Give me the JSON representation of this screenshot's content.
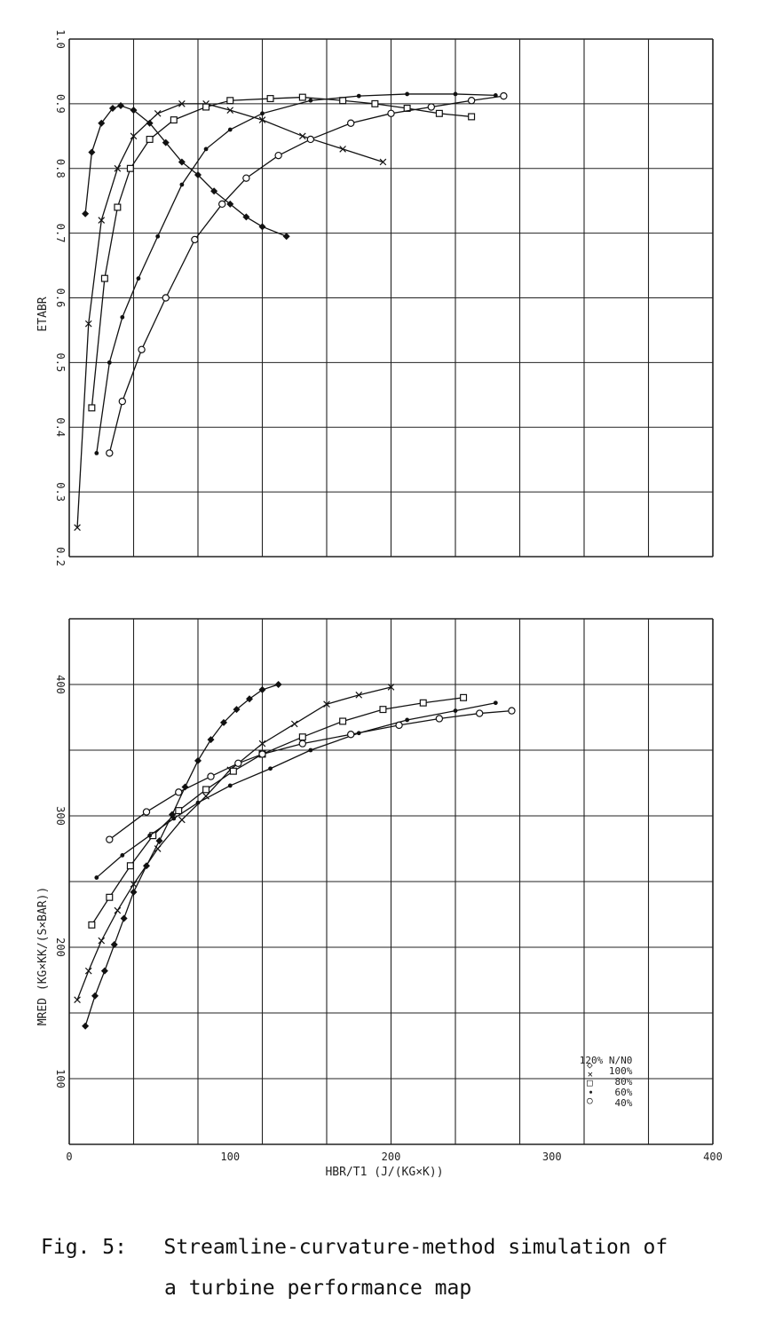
{
  "caption": {
    "line1_prefix": "Fig. 5:",
    "line1_text": "Streamline-curvature-method simulation of",
    "line2": "a turbine performance map"
  },
  "chart_data": [
    {
      "type": "line",
      "name": "efficiency-map",
      "xlabel": "",
      "ylabel": "ETABR",
      "xlim": [
        0,
        400
      ],
      "ylim": [
        0.2,
        1.0
      ],
      "xticks": [
        0,
        40,
        80,
        120,
        160,
        200,
        240,
        280,
        320,
        360,
        400
      ],
      "yticks": [
        0.2,
        0.3,
        0.4,
        0.5,
        0.6,
        0.7,
        0.8,
        0.9,
        1.0
      ],
      "ytick_labels": [
        "0.2",
        "0.3",
        "0.4",
        "0.5",
        "0.6",
        "0.7",
        "0.8",
        "0.9",
        "1.0"
      ],
      "grid": true,
      "series": [
        {
          "marker": "diamond",
          "x": [
            10,
            14,
            20,
            27,
            32,
            40,
            50,
            60,
            70,
            80,
            90,
            100,
            110,
            120,
            135
          ],
          "y": [
            0.73,
            0.825,
            0.87,
            0.893,
            0.897,
            0.89,
            0.87,
            0.84,
            0.81,
            0.79,
            0.765,
            0.745,
            0.725,
            0.71,
            0.695
          ]
        },
        {
          "marker": "x",
          "x": [
            5,
            12,
            20,
            30,
            40,
            55,
            70,
            85,
            100,
            120,
            145,
            170,
            195
          ],
          "y": [
            0.245,
            0.56,
            0.72,
            0.8,
            0.85,
            0.885,
            0.9,
            0.9,
            0.89,
            0.875,
            0.85,
            0.83,
            0.81
          ]
        },
        {
          "marker": "square",
          "x": [
            14,
            22,
            30,
            38,
            50,
            65,
            85,
            100,
            125,
            145,
            170,
            190,
            210,
            230,
            250
          ],
          "y": [
            0.43,
            0.63,
            0.74,
            0.8,
            0.845,
            0.875,
            0.895,
            0.905,
            0.908,
            0.91,
            0.905,
            0.9,
            0.893,
            0.885,
            0.88
          ]
        },
        {
          "marker": "dot",
          "x": [
            17,
            25,
            33,
            43,
            55,
            70,
            85,
            100,
            120,
            150,
            180,
            210,
            240,
            265
          ],
          "y": [
            0.36,
            0.5,
            0.57,
            0.63,
            0.695,
            0.775,
            0.83,
            0.86,
            0.885,
            0.905,
            0.912,
            0.915,
            0.915,
            0.913
          ]
        },
        {
          "marker": "circle",
          "x": [
            25,
            33,
            45,
            60,
            78,
            95,
            110,
            130,
            150,
            175,
            200,
            225,
            250,
            270
          ],
          "y": [
            0.36,
            0.44,
            0.52,
            0.6,
            0.69,
            0.745,
            0.785,
            0.82,
            0.845,
            0.87,
            0.885,
            0.895,
            0.905,
            0.912
          ]
        }
      ]
    },
    {
      "type": "line",
      "name": "mass-flow-map",
      "xlabel": "HBR/T1    (J/(KG×K))",
      "ylabel": "MRED   (KG×KK/(S×BAR))",
      "xlim": [
        0,
        400
      ],
      "ylim": [
        50,
        450
      ],
      "xticks": [
        0,
        40,
        80,
        120,
        160,
        200,
        240,
        280,
        320,
        360,
        400
      ],
      "xtick_labels": [
        "0",
        "",
        "100",
        "",
        "200",
        "",
        "300",
        "",
        "400"
      ],
      "xtick_label_values": [
        0,
        50,
        100,
        150,
        200,
        250,
        300,
        350,
        400
      ],
      "yticks": [
        50,
        100,
        150,
        200,
        250,
        300,
        350,
        400,
        450
      ],
      "ytick_labels": [
        "",
        "100",
        "",
        "200",
        "",
        "300",
        "",
        "400",
        ""
      ],
      "grid": true,
      "legend": {
        "placement": "bottom-right",
        "symbols": [
          "◇",
          "×",
          "□",
          "•",
          "○"
        ],
        "labels": [
          "120% N/N0",
          "100%",
          "80%",
          "60%",
          "40%"
        ]
      },
      "series": [
        {
          "marker": "diamond",
          "x": [
            10,
            16,
            22,
            28,
            34,
            40,
            48,
            56,
            64,
            72,
            80,
            88,
            96,
            104,
            112,
            120,
            130
          ],
          "y": [
            140,
            163,
            182,
            202,
            222,
            242,
            262,
            281,
            301,
            322,
            342,
            358,
            371,
            381,
            389,
            396,
            400
          ]
        },
        {
          "marker": "x",
          "x": [
            5,
            12,
            20,
            30,
            40,
            55,
            70,
            85,
            100,
            120,
            140,
            160,
            180,
            200
          ],
          "y": [
            160,
            182,
            205,
            228,
            248,
            275,
            297,
            315,
            335,
            355,
            370,
            385,
            392,
            398
          ]
        },
        {
          "marker": "square",
          "x": [
            14,
            25,
            38,
            52,
            68,
            85,
            102,
            120,
            145,
            170,
            195,
            220,
            245
          ],
          "y": [
            217,
            238,
            262,
            285,
            304,
            320,
            334,
            347,
            360,
            372,
            381,
            386,
            390
          ]
        },
        {
          "marker": "dot",
          "x": [
            17,
            33,
            50,
            65,
            80,
            100,
            125,
            150,
            180,
            210,
            240,
            265
          ],
          "y": [
            253,
            270,
            285,
            298,
            310,
            323,
            336,
            350,
            363,
            373,
            380,
            386
          ]
        },
        {
          "marker": "circle",
          "x": [
            25,
            48,
            68,
            88,
            105,
            120,
            145,
            175,
            205,
            230,
            255,
            275
          ],
          "y": [
            282,
            303,
            318,
            330,
            340,
            347,
            355,
            362,
            369,
            374,
            378,
            380
          ]
        }
      ]
    }
  ]
}
